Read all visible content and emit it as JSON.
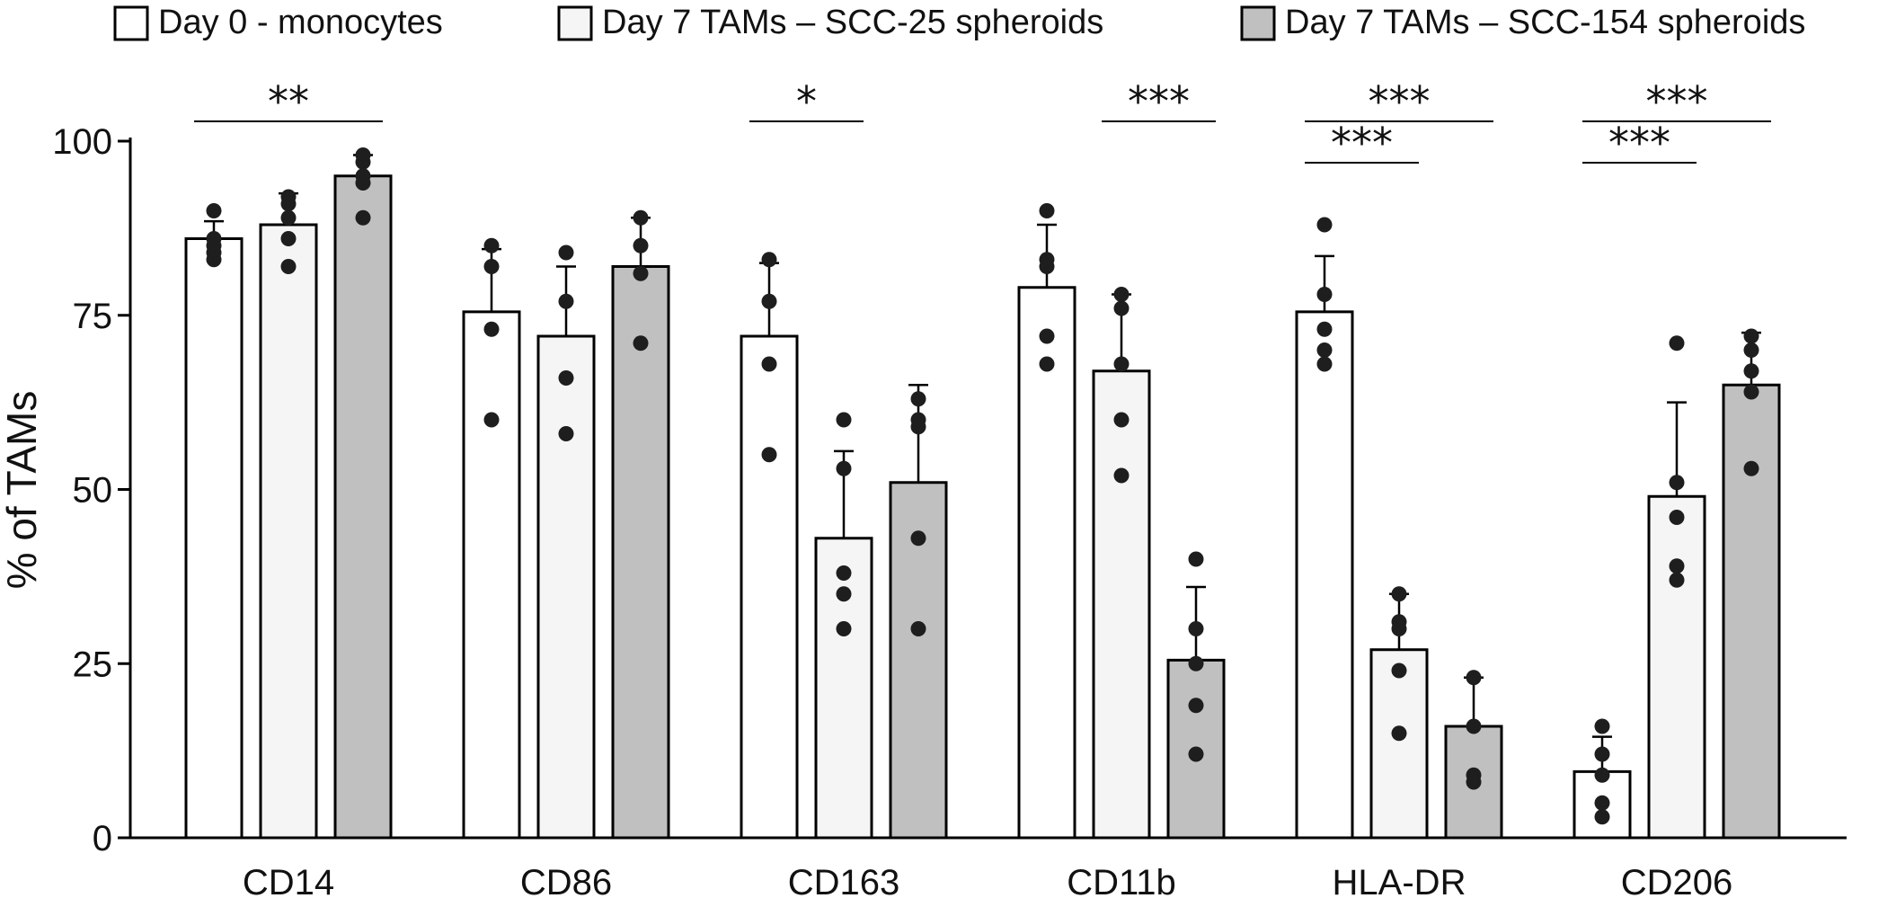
{
  "chart_data": {
    "type": "bar",
    "title": "",
    "xlabel": "",
    "ylabel": "% of TAMs",
    "ylim": [
      0,
      100
    ],
    "yticks": [
      0,
      25,
      50,
      75,
      100
    ],
    "grid": false,
    "legend_position": "top",
    "categories": [
      "CD14",
      "CD86",
      "CD163",
      "CD11b",
      "HLA-DR",
      "CD206"
    ],
    "series": [
      {
        "name": "Day 0 - monocytes",
        "color": "#ffffff",
        "values": [
          86,
          75.5,
          72,
          79,
          75.5,
          9.5
        ],
        "errors": [
          2.5,
          9,
          10.5,
          9,
          8,
          5
        ],
        "points": [
          [
            90,
            86,
            85,
            84,
            83
          ],
          [
            85,
            82,
            73,
            60
          ],
          [
            83,
            77,
            68,
            55
          ],
          [
            90,
            83,
            82,
            72,
            68
          ],
          [
            88,
            78,
            73,
            70,
            68
          ],
          [
            16,
            12,
            9,
            5,
            3
          ]
        ]
      },
      {
        "name": "Day 7 TAMs – SCC-25 spheroids",
        "color": "#f5f5f5",
        "values": [
          88,
          72,
          43,
          67,
          27,
          49
        ],
        "errors": [
          4.5,
          10,
          12.5,
          11,
          8,
          13.5
        ],
        "points": [
          [
            92,
            91,
            89,
            86,
            82
          ],
          [
            84,
            77,
            66,
            58
          ],
          [
            60,
            53,
            38,
            35,
            30
          ],
          [
            78,
            76,
            68,
            60,
            52
          ],
          [
            35,
            31,
            30,
            24,
            15
          ],
          [
            71,
            51,
            46,
            39,
            37
          ]
        ]
      },
      {
        "name": "Day 7 TAMs – SCC-154 spheroids",
        "color": "#c0c0c0",
        "values": [
          95,
          82,
          51,
          25.5,
          16,
          65
        ],
        "errors": [
          3,
          7,
          14,
          10.5,
          7,
          7.5
        ],
        "points": [
          [
            98,
            97,
            95,
            94,
            89
          ],
          [
            89,
            85,
            81,
            71
          ],
          [
            63,
            60,
            59,
            43,
            30
          ],
          [
            40,
            30,
            25,
            19,
            12
          ],
          [
            23,
            16,
            9,
            8
          ],
          [
            72,
            70,
            67,
            64,
            53
          ]
        ]
      }
    ],
    "significance": [
      {
        "category": 0,
        "from": 0,
        "to": 2,
        "label": "**",
        "level": 0
      },
      {
        "category": 2,
        "from": 0,
        "to": 1,
        "label": "*",
        "level": 0
      },
      {
        "category": 3,
        "from": 1,
        "to": 2,
        "label": "***",
        "level": 0
      },
      {
        "category": 4,
        "from": 0,
        "to": 2,
        "label": "***",
        "level": 0
      },
      {
        "category": 4,
        "from": 0,
        "to": 1,
        "label": "***",
        "level": 1
      },
      {
        "category": 5,
        "from": 0,
        "to": 2,
        "label": "***",
        "level": 0
      },
      {
        "category": 5,
        "from": 0,
        "to": 1,
        "label": "***",
        "level": 1
      }
    ]
  }
}
